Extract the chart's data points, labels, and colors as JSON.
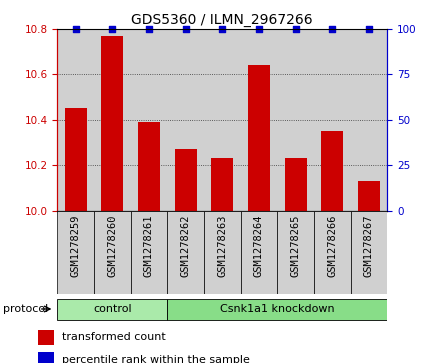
{
  "title": "GDS5360 / ILMN_2967266",
  "samples": [
    "GSM1278259",
    "GSM1278260",
    "GSM1278261",
    "GSM1278262",
    "GSM1278263",
    "GSM1278264",
    "GSM1278265",
    "GSM1278266",
    "GSM1278267"
  ],
  "red_values": [
    10.45,
    10.77,
    10.39,
    10.27,
    10.23,
    10.64,
    10.23,
    10.35,
    10.13
  ],
  "blue_values": [
    100,
    100,
    100,
    100,
    100,
    100,
    100,
    100,
    100
  ],
  "ylim_left": [
    10,
    10.8
  ],
  "ylim_right": [
    0,
    100
  ],
  "yticks_left": [
    10,
    10.2,
    10.4,
    10.6,
    10.8
  ],
  "yticks_right": [
    0,
    25,
    50,
    75,
    100
  ],
  "bar_color": "#cc0000",
  "dot_color": "#0000cc",
  "bar_width": 0.6,
  "control_indices": [
    0,
    1,
    2
  ],
  "kd_indices": [
    3,
    4,
    5,
    6,
    7,
    8
  ],
  "control_label": "control",
  "kd_label": "Csnk1a1 knockdown",
  "control_color": "#aaeaaa",
  "kd_color": "#88dd88",
  "protocol_label": "protocol",
  "legend_red": "transformed count",
  "legend_blue": "percentile rank within the sample",
  "col_bg": "#d0d0d0",
  "grid_color": "#333333",
  "title_fontsize": 10,
  "tick_fontsize": 7.5,
  "label_fontsize": 8
}
